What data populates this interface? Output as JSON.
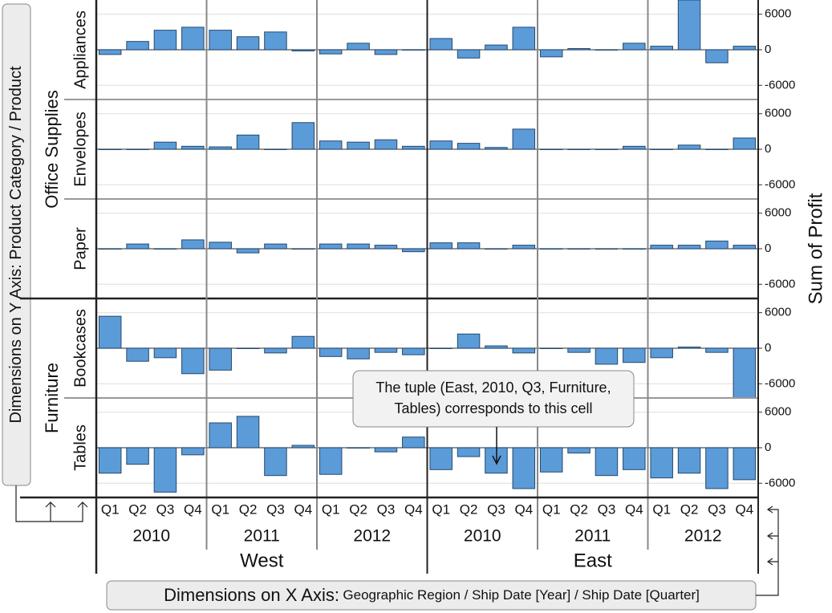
{
  "chart_data": {
    "type": "bar",
    "y_axis_title": "Sum of Profit",
    "x_dims_label": "Dimensions on X Axis:",
    "x_dims": "Geographic Region / Ship Date [Year] / Ship Date [Quarter]",
    "y_dims_label": "Dimensions on Y Axis:",
    "y_dims": "Product Category / Product",
    "callout": [
      "The tuple (East, 2010,  Q3, Furniture,",
      "Tables) corresponds to this cell"
    ],
    "regions": [
      "West",
      "East"
    ],
    "years": [
      "2010",
      "2011",
      "2012"
    ],
    "quarters": [
      "Q1",
      "Q2",
      "Q3",
      "Q4"
    ],
    "categories": [
      "Office Supplies",
      "Furniture"
    ],
    "color": "#5b9bd8",
    "ylim": [
      -8400,
      8400
    ],
    "yticks": [
      6000,
      0,
      -6000
    ],
    "grid": true,
    "panels": [
      {
        "category": 0,
        "name": "Appliances",
        "values": [
          -800,
          1400,
          3300,
          3800,
          3300,
          2200,
          3000,
          -200,
          -700,
          1100,
          -800,
          0,
          1900,
          -1400,
          800,
          3800,
          -1200,
          200,
          0,
          1100,
          600,
          8400,
          -2200,
          600
        ]
      },
      {
        "category": 0,
        "name": "Envelopes",
        "values": [
          0,
          0,
          1200,
          500,
          400,
          2400,
          0,
          4500,
          1400,
          1200,
          1600,
          500,
          1400,
          1000,
          300,
          3400,
          0,
          0,
          0,
          500,
          0,
          700,
          0,
          1900
        ]
      },
      {
        "category": 0,
        "name": "Paper",
        "values": [
          0,
          800,
          0,
          1500,
          1100,
          -700,
          800,
          0,
          800,
          800,
          600,
          -500,
          1000,
          1000,
          0,
          600,
          0,
          0,
          0,
          0,
          600,
          600,
          1300,
          600
        ]
      },
      {
        "category": 1,
        "name": "Bookcases",
        "values": [
          5400,
          -2200,
          -1600,
          -4300,
          -3700,
          0,
          -800,
          2000,
          -1400,
          -1800,
          -700,
          -1100,
          0,
          2400,
          400,
          -800,
          0,
          -700,
          -2700,
          -2400,
          -1600,
          200,
          -700,
          -8400
        ]
      },
      {
        "category": 1,
        "name": "Tables",
        "values": [
          -4300,
          -2800,
          -7500,
          -1200,
          4200,
          5300,
          -4700,
          400,
          -4500,
          0,
          -700,
          1800,
          -3700,
          -1500,
          -4300,
          -6900,
          -4100,
          -900,
          -4700,
          -3700,
          -5100,
          -4300,
          -6900,
          -5400
        ]
      }
    ]
  }
}
